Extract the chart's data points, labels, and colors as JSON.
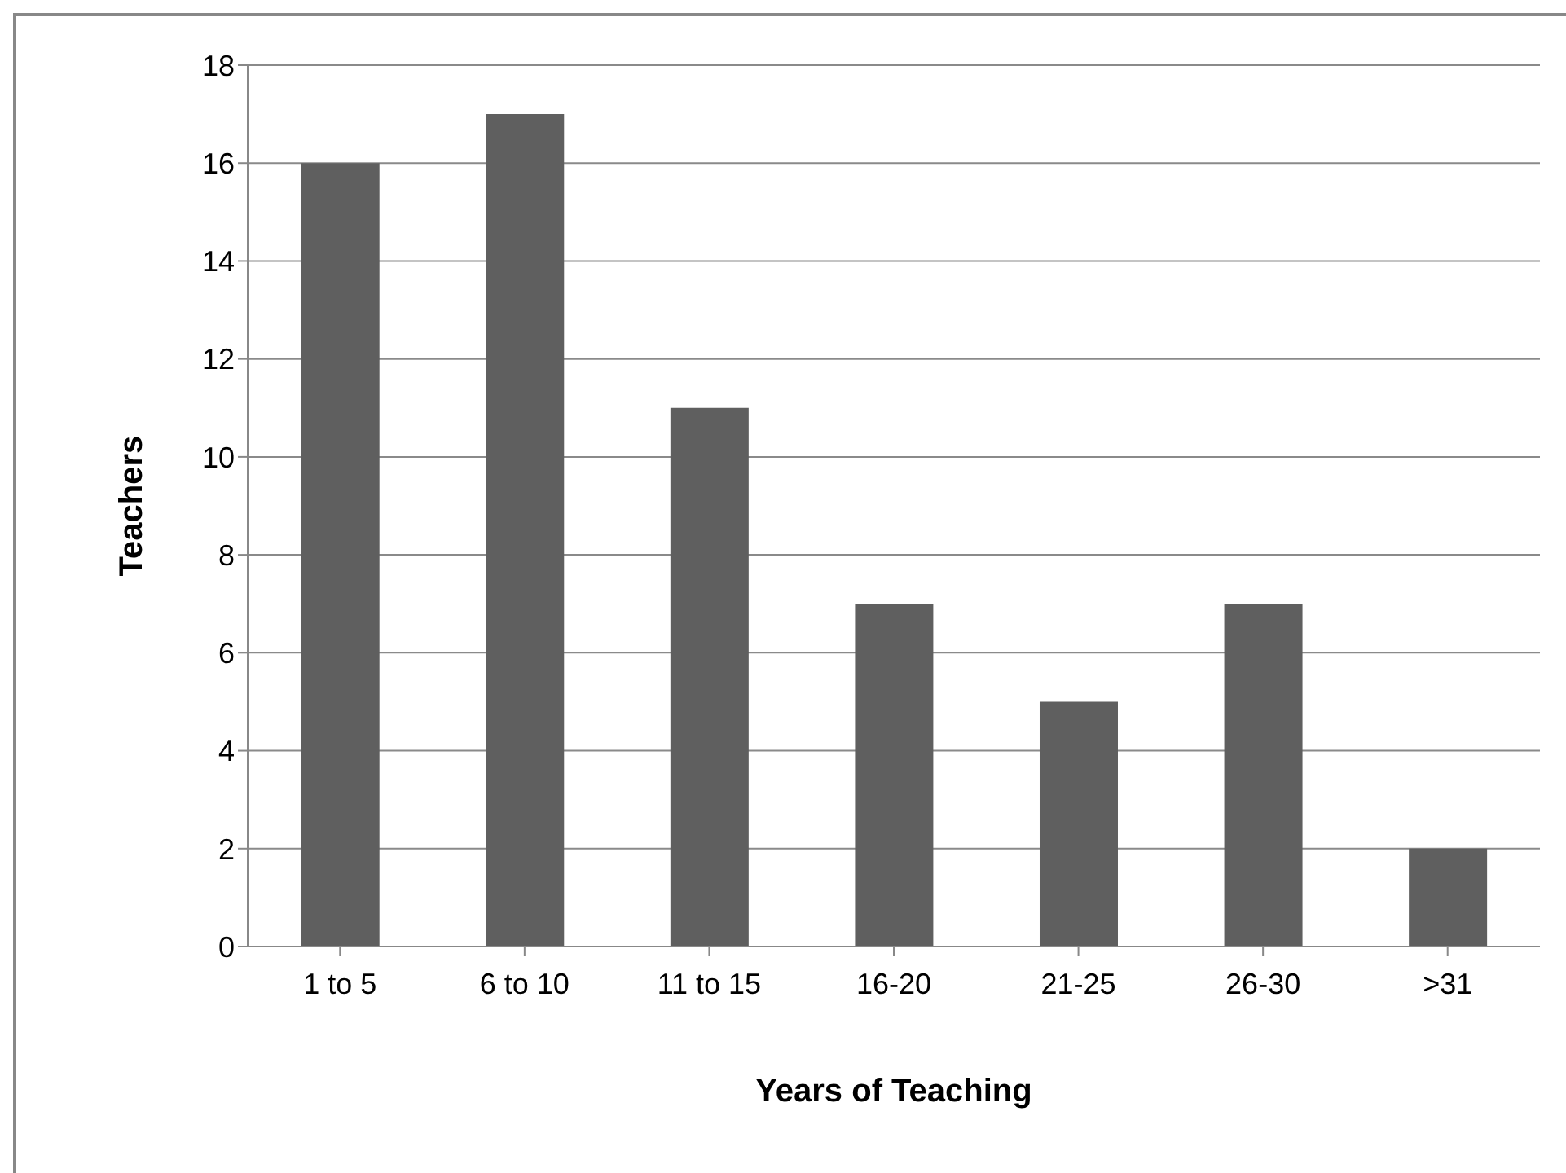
{
  "chart_data": {
    "type": "bar",
    "xlabel": "Years of Teaching",
    "ylabel": "Teachers",
    "categories": [
      "1 to 5",
      "6 to 10",
      "11 to 15",
      "16-20",
      "21-25",
      "26-30",
      ">31"
    ],
    "values": [
      16,
      17,
      11,
      7,
      5,
      7,
      2
    ],
    "color": "#5f5f5f",
    "ylim": [
      0,
      18
    ],
    "yticks": [
      0,
      2,
      4,
      6,
      8,
      10,
      12,
      14,
      16,
      18
    ],
    "grid": "y",
    "legend": false
  }
}
